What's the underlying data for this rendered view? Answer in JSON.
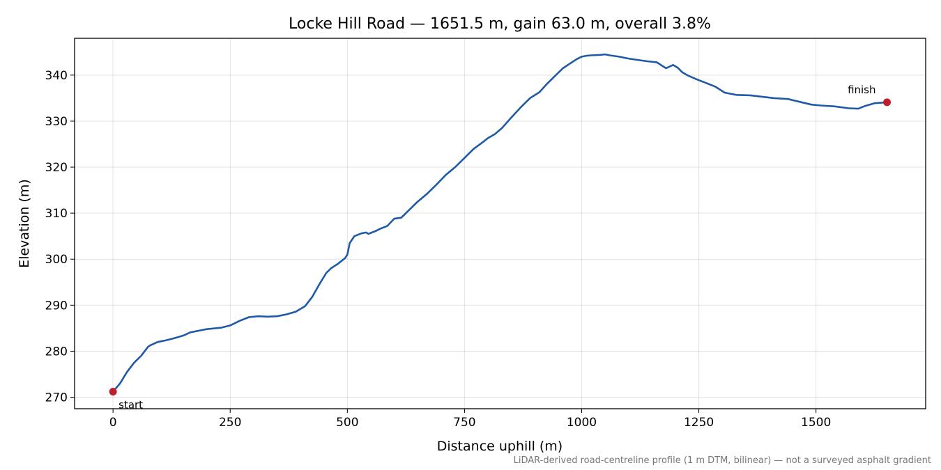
{
  "chart_data": {
    "type": "line",
    "title": "Locke Hill Road — 1651.5 m, gain 63.0 m, overall 3.8%",
    "xlabel": "Distance uphill (m)",
    "ylabel": "Elevation (m)",
    "xlim": [
      -82,
      1734
    ],
    "ylim": [
      267.5,
      348.0
    ],
    "xticks": [
      0,
      250,
      500,
      750,
      1000,
      1250,
      1500
    ],
    "yticks": [
      270,
      280,
      290,
      300,
      310,
      320,
      330,
      340
    ],
    "grid": true,
    "line_color": "#1f5aa6",
    "marker_color": "#c0202c",
    "series": [
      {
        "x": [
          0,
          15,
          30,
          45,
          60,
          75,
          80,
          95,
          110,
          130,
          150,
          165,
          175,
          200,
          230,
          250,
          270,
          290,
          310,
          330,
          350,
          370,
          390,
          410,
          425,
          440,
          455,
          465,
          480,
          495,
          500,
          505,
          515,
          530,
          540,
          545,
          550,
          560,
          570,
          585,
          600,
          615,
          630,
          650,
          670,
          690,
          710,
          730,
          750,
          770,
          790,
          800,
          815,
          830,
          850,
          870,
          890,
          910,
          925,
          940,
          960,
          975,
          990,
          1000,
          1010,
          1020,
          1040,
          1050,
          1060,
          1080,
          1100,
          1120,
          1140,
          1160,
          1180,
          1195,
          1205,
          1215,
          1225,
          1245,
          1265,
          1285,
          1305,
          1330,
          1360,
          1385,
          1410,
          1440,
          1465,
          1490,
          1510,
          1540,
          1570,
          1590,
          1605,
          1625,
          1651.5
        ],
        "y": [
          271.2,
          273.0,
          275.5,
          277.5,
          279.0,
          281.0,
          281.3,
          282.0,
          282.3,
          282.8,
          283.4,
          284.1,
          284.3,
          284.8,
          285.1,
          285.6,
          286.6,
          287.4,
          287.6,
          287.5,
          287.6,
          288.0,
          288.6,
          289.8,
          291.8,
          294.5,
          297.0,
          298.0,
          299.0,
          300.2,
          301.0,
          303.5,
          305.0,
          305.6,
          305.8,
          305.5,
          305.7,
          306.1,
          306.6,
          307.2,
          308.8,
          309.0,
          310.5,
          312.5,
          314.2,
          316.2,
          318.3,
          320.0,
          322.0,
          324.0,
          325.5,
          326.3,
          327.2,
          328.5,
          330.8,
          333.0,
          335.0,
          336.3,
          338.0,
          339.5,
          341.5,
          342.5,
          343.5,
          344.0,
          344.2,
          344.3,
          344.4,
          344.5,
          344.3,
          344.0,
          343.6,
          343.3,
          343.0,
          342.8,
          341.5,
          342.2,
          341.6,
          340.6,
          340.0,
          339.1,
          338.3,
          337.5,
          336.2,
          335.7,
          335.6,
          335.3,
          335.0,
          334.8,
          334.2,
          333.6,
          333.4,
          333.2,
          332.8,
          332.7,
          333.3,
          333.9,
          334.1
        ]
      }
    ],
    "annotations": [
      {
        "label": "start",
        "x": 0,
        "y": 271.2
      },
      {
        "label": "finish",
        "x": 1651.5,
        "y": 334.1
      }
    ],
    "footnote": "LiDAR-derived road-centreline profile (1 m DTM, bilinear) — not a surveyed asphalt gradient"
  }
}
